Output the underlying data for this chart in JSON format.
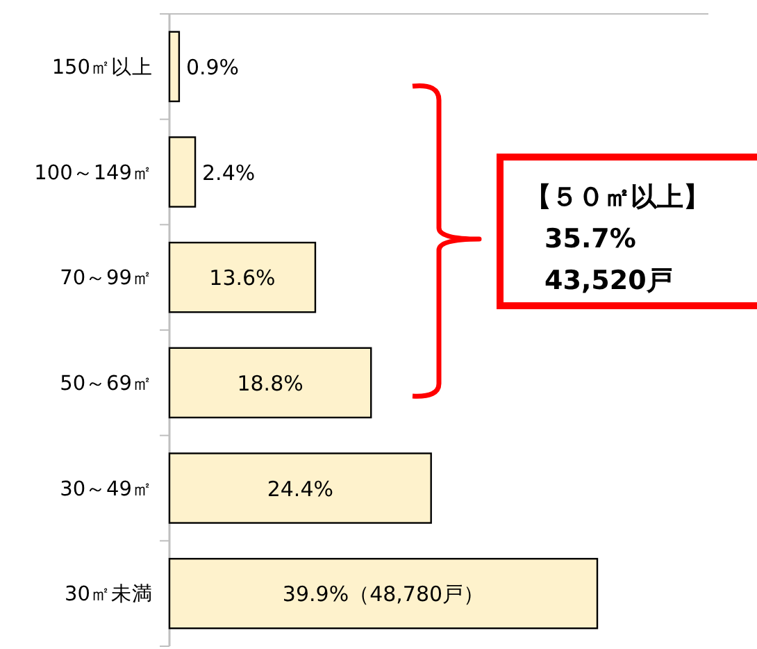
{
  "chart_data": {
    "type": "bar",
    "orientation": "horizontal",
    "categories": [
      "150㎡以上",
      "100～149㎡",
      "70～99㎡",
      "50～69㎡",
      "30～49㎡",
      "30㎡未満"
    ],
    "values": [
      0.9,
      2.4,
      13.6,
      18.8,
      24.4,
      39.9
    ],
    "value_labels": [
      "0.9%",
      "2.4%",
      "13.6%",
      "18.8%",
      "24.4%",
      "39.9%（48,780戸）"
    ],
    "color": "#fef2cc",
    "annotations": [
      "【５０㎡以上】",
      "35.7%",
      "43,520戸"
    ]
  }
}
